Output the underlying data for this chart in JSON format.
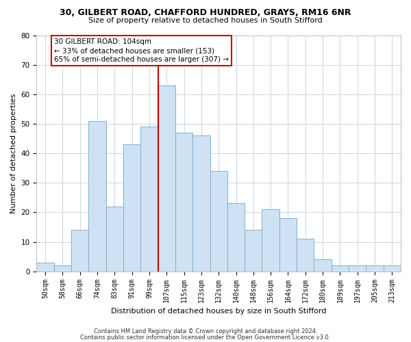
{
  "title1": "30, GILBERT ROAD, CHAFFORD HUNDRED, GRAYS, RM16 6NR",
  "title2": "Size of property relative to detached houses in South Stifford",
  "xlabel": "Distribution of detached houses by size in South Stifford",
  "ylabel": "Number of detached properties",
  "categories": [
    "50sqm",
    "58sqm",
    "66sqm",
    "74sqm",
    "83sqm",
    "91sqm",
    "99sqm",
    "107sqm",
    "115sqm",
    "123sqm",
    "132sqm",
    "140sqm",
    "148sqm",
    "156sqm",
    "164sqm",
    "172sqm",
    "180sqm",
    "189sqm",
    "197sqm",
    "205sqm",
    "213sqm"
  ],
  "values": [
    3,
    2,
    14,
    51,
    22,
    43,
    49,
    63,
    47,
    46,
    34,
    23,
    14,
    21,
    18,
    11,
    4,
    2,
    2,
    2,
    2
  ],
  "bar_color": "#cfe2f3",
  "bar_edge_color": "#7bafd4",
  "vline_x_idx": 7,
  "vline_color": "#cc0000",
  "annotation_text": "30 GILBERT ROAD: 104sqm\n← 33% of detached houses are smaller (153)\n65% of semi-detached houses are larger (307) →",
  "annotation_box_color": "#ffffff",
  "annotation_box_edge": "#cc0000",
  "ylim": [
    0,
    80
  ],
  "yticks": [
    0,
    10,
    20,
    30,
    40,
    50,
    60,
    70,
    80
  ],
  "footnote1": "Contains HM Land Registry data © Crown copyright and database right 2024.",
  "footnote2": "Contains public sector information licensed under the Open Government Licence v3.0.",
  "bg_color": "#ffffff",
  "grid_color": "#c8d4e8",
  "title1_fontsize": 9,
  "title2_fontsize": 8,
  "tick_fontsize": 7,
  "ylabel_fontsize": 8,
  "xlabel_fontsize": 8,
  "footnote_fontsize": 6,
  "annot_fontsize": 7.5
}
